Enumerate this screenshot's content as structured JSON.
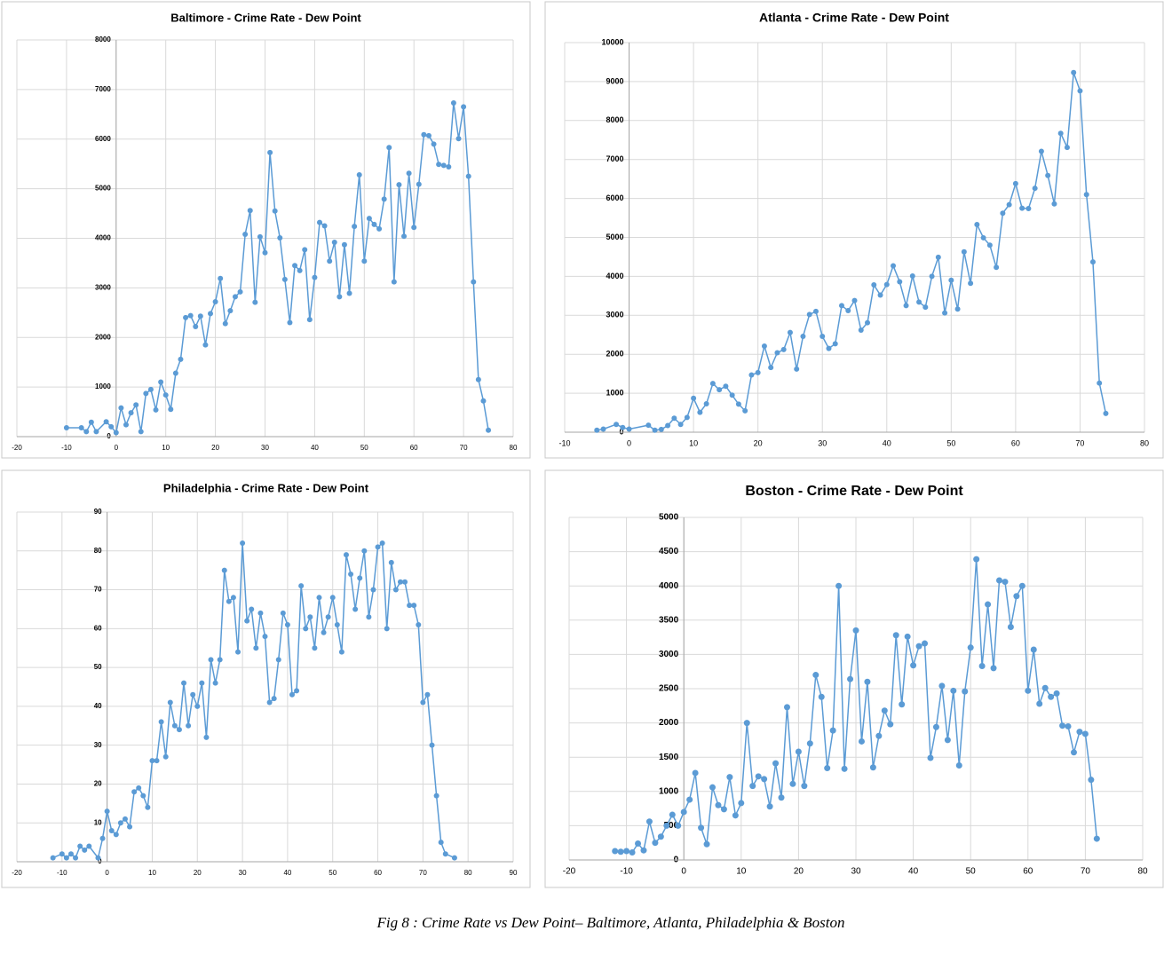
{
  "chart_data": [
    {
      "type": "line",
      "title": "Baltimore - Crime Rate - Dew Point",
      "color": "#5b9bd5",
      "grid": true,
      "xlim": [
        -20,
        80
      ],
      "xticks": [
        -20,
        -10,
        0,
        10,
        20,
        30,
        40,
        50,
        60,
        70,
        80
      ],
      "ylim": [
        0,
        8000
      ],
      "yticks": [
        0,
        1000,
        2000,
        3000,
        4000,
        5000,
        6000,
        7000,
        8000
      ],
      "x": [
        -10,
        -7,
        -6,
        -5,
        -4,
        -2,
        -1,
        0,
        1,
        2,
        3,
        4,
        5,
        6,
        7,
        8,
        9,
        10,
        11,
        12,
        13,
        14,
        15,
        16,
        17,
        18,
        19,
        20,
        21,
        22,
        23,
        24,
        25,
        26,
        27,
        28,
        29,
        30,
        31,
        32,
        33,
        34,
        35,
        36,
        37,
        38,
        39,
        40,
        41,
        42,
        43,
        44,
        45,
        46,
        47,
        48,
        49,
        50,
        51,
        52,
        53,
        54,
        55,
        56,
        57,
        58,
        59,
        60,
        61,
        62,
        63,
        64,
        65,
        66,
        67,
        68,
        69,
        70,
        71,
        72,
        73,
        74,
        75
      ],
      "values": [
        180,
        180,
        100,
        290,
        100,
        300,
        200,
        80,
        580,
        240,
        480,
        640,
        100,
        870,
        950,
        540,
        1100,
        840,
        550,
        1280,
        1560,
        2400,
        2440,
        2220,
        2430,
        1850,
        2480,
        2720,
        3190,
        2280,
        2540,
        2820,
        2920,
        4080,
        4560,
        2710,
        4030,
        3710,
        5730,
        4550,
        4010,
        3170,
        2300,
        3450,
        3350,
        3770,
        2360,
        3210,
        4320,
        4250,
        3540,
        3920,
        2820,
        3870,
        2890,
        4240,
        5280,
        3540,
        4400,
        4280,
        4190,
        4790,
        5830,
        3120,
        5080,
        4040,
        5310,
        4220,
        5090,
        6090,
        6070,
        5900,
        5490,
        5470,
        5440,
        6730,
        6010,
        6650,
        5250,
        3120,
        1150,
        720,
        130
      ]
    },
    {
      "type": "line",
      "title": "Atlanta - Crime Rate - Dew Point",
      "color": "#5b9bd5",
      "grid": true,
      "xlim": [
        -10,
        80
      ],
      "xticks": [
        -10,
        0,
        10,
        20,
        30,
        40,
        50,
        60,
        70,
        80
      ],
      "ylim": [
        0,
        10000
      ],
      "yticks": [
        0,
        1000,
        2000,
        3000,
        4000,
        5000,
        6000,
        7000,
        8000,
        9000,
        10000
      ],
      "x": [
        -5,
        -4,
        -2,
        -1,
        0,
        3,
        4,
        5,
        6,
        7,
        8,
        9,
        10,
        11,
        12,
        13,
        14,
        15,
        16,
        17,
        18,
        19,
        20,
        21,
        22,
        23,
        24,
        25,
        26,
        27,
        28,
        29,
        30,
        31,
        32,
        33,
        34,
        35,
        36,
        37,
        38,
        39,
        40,
        41,
        42,
        43,
        44,
        45,
        46,
        47,
        48,
        49,
        50,
        51,
        52,
        53,
        54,
        55,
        56,
        57,
        58,
        59,
        60,
        61,
        62,
        63,
        64,
        65,
        66,
        67,
        68,
        69,
        70,
        71,
        72,
        73,
        74
      ],
      "values": [
        50,
        80,
        200,
        120,
        80,
        180,
        50,
        70,
        170,
        360,
        200,
        380,
        870,
        510,
        730,
        1250,
        1090,
        1180,
        950,
        720,
        550,
        1470,
        1530,
        2210,
        1660,
        2040,
        2120,
        2560,
        1620,
        2460,
        3020,
        3100,
        2460,
        2150,
        2270,
        3250,
        3120,
        3380,
        2620,
        2810,
        3780,
        3520,
        3790,
        4270,
        3860,
        3250,
        4010,
        3340,
        3210,
        4000,
        4490,
        3060,
        3900,
        3160,
        4630,
        3820,
        5330,
        4990,
        4800,
        4230,
        5620,
        5840,
        6380,
        5750,
        5740,
        6260,
        7210,
        6590,
        5860,
        7670,
        7310,
        9230,
        8760,
        6100,
        4370,
        1260,
        480
      ]
    },
    {
      "type": "line",
      "title": "Philadelphia - Crime Rate - Dew Point",
      "color": "#5b9bd5",
      "grid": true,
      "xlim": [
        -20,
        90
      ],
      "xticks": [
        -20,
        -10,
        0,
        10,
        20,
        30,
        40,
        50,
        60,
        70,
        80,
        90
      ],
      "ylim": [
        0,
        90
      ],
      "yticks": [
        0,
        10,
        20,
        30,
        40,
        50,
        60,
        70,
        80,
        90
      ],
      "x": [
        -12,
        -10,
        -9,
        -8,
        -7,
        -6,
        -5,
        -4,
        -2,
        -1,
        0,
        1,
        2,
        3,
        4,
        5,
        6,
        7,
        8,
        9,
        10,
        11,
        12,
        13,
        14,
        15,
        16,
        17,
        18,
        19,
        20,
        21,
        22,
        23,
        24,
        25,
        26,
        27,
        28,
        29,
        30,
        31,
        32,
        33,
        34,
        35,
        36,
        37,
        38,
        39,
        40,
        41,
        42,
        43,
        44,
        45,
        46,
        47,
        48,
        49,
        50,
        51,
        52,
        53,
        54,
        55,
        56,
        57,
        58,
        59,
        60,
        61,
        62,
        63,
        64,
        65,
        66,
        67,
        68,
        69,
        70,
        71,
        72,
        73,
        74,
        75,
        77
      ],
      "values": [
        1,
        2,
        1,
        2,
        1,
        4,
        3,
        4,
        1,
        6,
        13,
        8,
        7,
        10,
        11,
        9,
        18,
        19,
        17,
        14,
        26,
        26,
        36,
        27,
        41,
        35,
        34,
        46,
        35,
        43,
        40,
        46,
        32,
        52,
        46,
        52,
        75,
        67,
        68,
        54,
        82,
        62,
        65,
        55,
        64,
        58,
        41,
        42,
        52,
        64,
        61,
        43,
        44,
        71,
        60,
        63,
        55,
        68,
        59,
        63,
        68,
        61,
        54,
        79,
        74,
        65,
        73,
        80,
        63,
        70,
        81,
        82,
        60,
        77,
        70,
        72,
        72,
        66,
        66,
        61,
        41,
        43,
        30,
        17,
        5,
        2,
        1
      ]
    },
    {
      "type": "line",
      "title": "Boston - Crime Rate - Dew Point",
      "color": "#5b9bd5",
      "grid": true,
      "xlim": [
        -20,
        80
      ],
      "xticks": [
        -20,
        -10,
        0,
        10,
        20,
        30,
        40,
        50,
        60,
        70,
        80
      ],
      "ylim": [
        0,
        5000
      ],
      "yticks": [
        0,
        500,
        1000,
        1500,
        2000,
        2500,
        3000,
        3500,
        4000,
        4500,
        5000
      ],
      "x": [
        -12,
        -11,
        -10,
        -9,
        -8,
        -7,
        -6,
        -5,
        -4,
        -3,
        -2,
        -1,
        0,
        1,
        2,
        3,
        4,
        5,
        6,
        7,
        8,
        9,
        10,
        11,
        12,
        13,
        14,
        15,
        16,
        17,
        18,
        19,
        20,
        21,
        22,
        23,
        24,
        25,
        26,
        27,
        28,
        29,
        30,
        31,
        32,
        33,
        34,
        35,
        36,
        37,
        38,
        39,
        40,
        41,
        42,
        43,
        44,
        45,
        46,
        47,
        48,
        49,
        50,
        51,
        52,
        53,
        54,
        55,
        56,
        57,
        58,
        59,
        60,
        61,
        62,
        63,
        64,
        65,
        66,
        67,
        68,
        69,
        70,
        71,
        72
      ],
      "values": [
        130,
        120,
        130,
        110,
        240,
        140,
        560,
        250,
        340,
        500,
        660,
        500,
        700,
        880,
        1270,
        470,
        230,
        1060,
        800,
        740,
        1210,
        650,
        830,
        2000,
        1080,
        1220,
        1180,
        780,
        1410,
        910,
        2230,
        1110,
        1580,
        1080,
        1700,
        2700,
        2380,
        1340,
        1890,
        4000,
        1330,
        2640,
        3350,
        1730,
        2600,
        1350,
        1810,
        2180,
        1980,
        3280,
        2270,
        3260,
        2840,
        3120,
        3160,
        1490,
        1940,
        2540,
        1750,
        2470,
        1380,
        2460,
        3100,
        4390,
        2830,
        3730,
        2800,
        4080,
        4060,
        3400,
        3850,
        4000,
        2470,
        3070,
        2280,
        2510,
        2380,
        2430,
        1960,
        1950,
        1570,
        1870,
        1840,
        1170,
        310
      ]
    }
  ],
  "caption": "Fig 8 : Crime Rate vs Dew Point– Baltimore, Atlanta, Philadelphia & Boston"
}
